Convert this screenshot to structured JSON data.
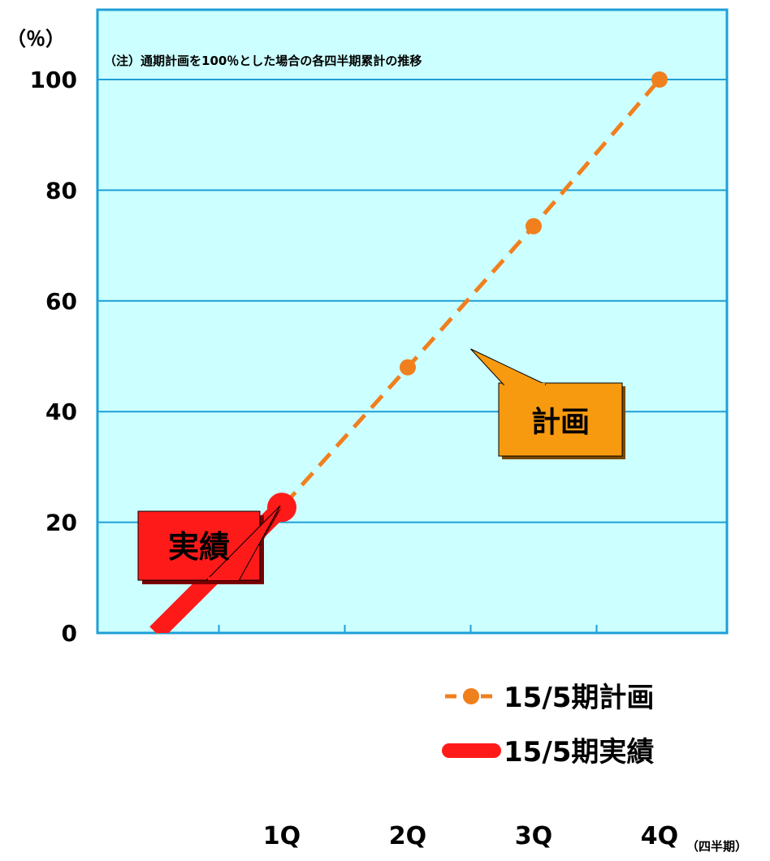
{
  "chart_data": {
    "type": "line",
    "y_unit": "（％）",
    "note": "（注）通期計画を100％とした場合の各四半期累計の推移",
    "x_unit": "（四半期）",
    "categories": [
      "1Q",
      "2Q",
      "3Q",
      "4Q"
    ],
    "ylim": [
      0,
      100
    ],
    "y_ticks": [
      "0",
      "20",
      "40",
      "60",
      "80",
      "100"
    ],
    "grid": true,
    "legend_position": "bottom-right",
    "series": [
      {
        "name": "15/5期計画",
        "style": "dashed-with-markers",
        "color": "#f07f1e",
        "x": [
          0,
          1,
          2,
          3,
          4
        ],
        "values": [
          0,
          22.7,
          48,
          73.5,
          100
        ]
      },
      {
        "name": "15/5期実績",
        "style": "thick-solid",
        "color": "#ff1a1a",
        "x": [
          0,
          1
        ],
        "values": [
          0,
          22.7
        ]
      }
    ],
    "callouts": [
      {
        "text": "実績",
        "series": "15/5期実績",
        "bg": "#ff1a1a",
        "color": "#000000"
      },
      {
        "text": "計画",
        "series": "15/5期計画",
        "bg": "#f79a0f",
        "color": "#000000"
      }
    ],
    "colors": {
      "plot_bg": "#ccffff",
      "border": "#1e9fd6",
      "grid": "#1e9fd6"
    }
  }
}
